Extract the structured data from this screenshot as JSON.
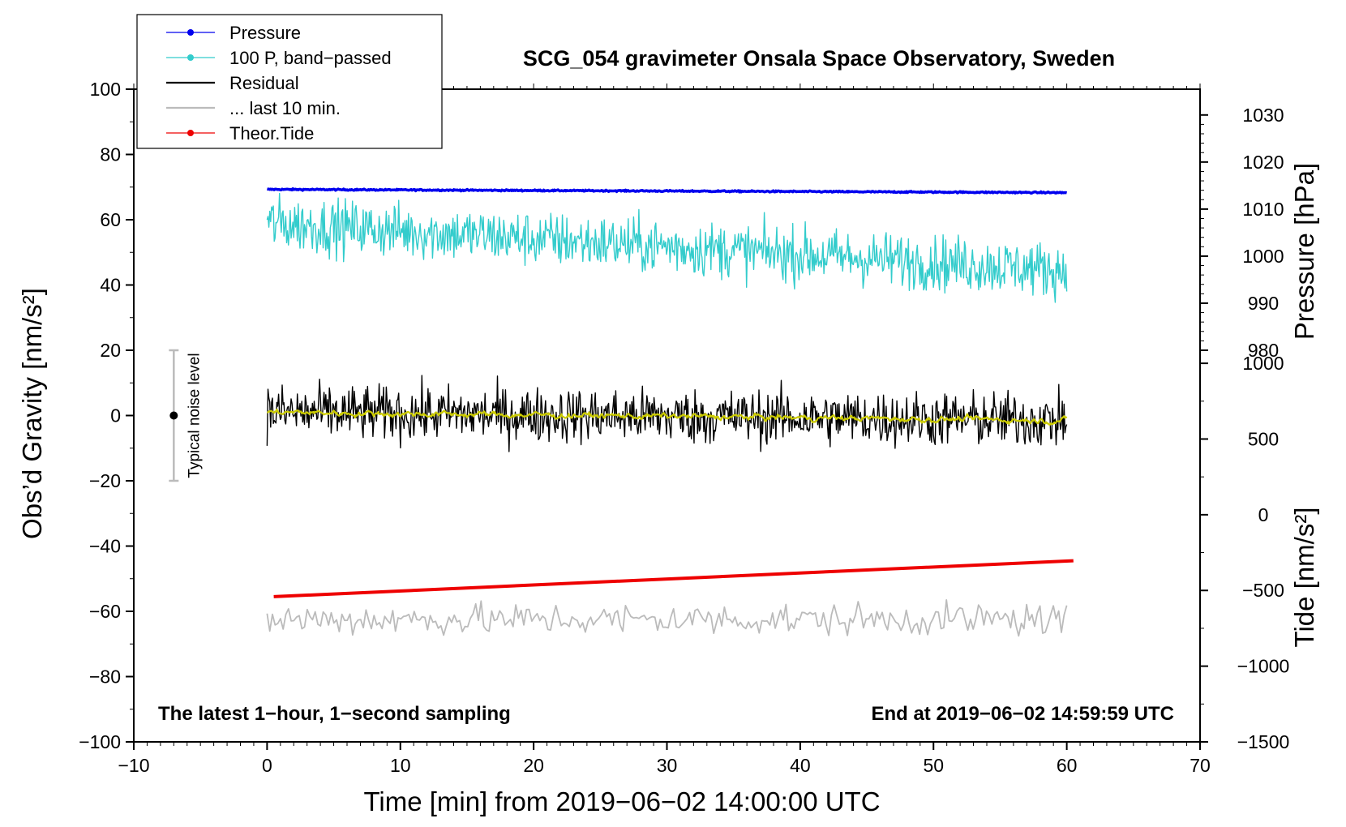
{
  "chart_data": {
    "type": "line",
    "title": "SCG_054 gravimeter Onsala Space Observatory, Sweden",
    "xlabel": "Time [min] from 2019−06−02 14:00:00 UTC",
    "ylabel_left": "Obs’d Gravity [nm/s²]",
    "ylabel_right_pressure": "Pressure [hPa]",
    "ylabel_right_tide": "Tide [nm/s²]",
    "xlim": [
      -10,
      70
    ],
    "ylim": [
      -100,
      100
    ],
    "x_ticks": [
      -10,
      0,
      10,
      20,
      30,
      40,
      50,
      60,
      70
    ],
    "x_tick_labels": [
      "−10",
      "0",
      "10",
      "20",
      "30",
      "40",
      "50",
      "60",
      "70"
    ],
    "y_ticks": [
      -100,
      -80,
      -60,
      -40,
      -20,
      0,
      20,
      40,
      60,
      80,
      100
    ],
    "y_tick_labels": [
      "−100",
      "−80",
      "−60",
      "−40",
      "−20",
      "0",
      "20",
      "40",
      "60",
      "80",
      "100"
    ],
    "pressure_axis": {
      "ticks": [
        980,
        990,
        1000,
        1010,
        1020,
        1030
      ],
      "tick_labels": [
        "980",
        "990",
        "1000",
        "1010",
        "1020",
        "1030"
      ],
      "map": [
        [
          980,
          20
        ],
        [
          1030,
          92.1
        ]
      ]
    },
    "tide_axis": {
      "ticks": [
        -1500,
        -1000,
        -500,
        0,
        500,
        1000
      ],
      "tick_labels": [
        "−1500",
        "−1000",
        "−500",
        "0",
        "500",
        "1000"
      ],
      "map": [
        [
          -1500,
          -100
        ],
        [
          1000,
          16
        ]
      ]
    },
    "annotation_left": "The latest 1−hour, 1−second sampling",
    "annotation_right": "End at 2019−06−02 14:59:59 UTC",
    "noise_bar": {
      "label": "Typical noise level",
      "x": -7,
      "center": 0,
      "low": -20,
      "high": 20
    },
    "legend": [
      {
        "label": "Pressure",
        "color": "#0000ee",
        "marker": true
      },
      {
        "label": "100 P, band−passed",
        "color": "#33cccc",
        "marker": true
      },
      {
        "label": "Residual",
        "color": "#000000",
        "marker": false
      },
      {
        "label": "... last 10 min.",
        "color": "#bbbbbb",
        "marker": false
      },
      {
        "label": "Theor.Tide",
        "color": "#ee0000",
        "marker": true
      }
    ],
    "series": [
      {
        "name": "Pressure",
        "color": "#0000ee",
        "x_range": [
          0,
          60
        ],
        "start": 69.3,
        "end": 68.3,
        "noise": 0.15,
        "width": 3.5
      },
      {
        "name": "100 P, band−passed",
        "color": "#33cccc",
        "x_range": [
          0,
          60
        ],
        "start": 59,
        "end": 44.5,
        "noise": 6,
        "width": 1.4
      },
      {
        "name": "Residual",
        "color": "#000000",
        "x_range": [
          0,
          60
        ],
        "start": 1,
        "end": -1.5,
        "noise": 6,
        "width": 1.4
      },
      {
        "name": "Residual (smoothed)",
        "color": "#cccc00",
        "x_range": [
          0,
          60
        ],
        "start": 1,
        "end": -1.5,
        "noise": 1,
        "width": 2.2
      },
      {
        "name": "... last 10 min.",
        "color": "#bbbbbb",
        "x_range": [
          0,
          60
        ],
        "start": -62.5,
        "end": -62.5,
        "noise": 3.5,
        "width": 1.8
      },
      {
        "name": "Theor.Tide",
        "color": "#ee0000",
        "x_range": [
          0.5,
          60.5
        ],
        "start": -55.5,
        "end": -44.5,
        "noise": 0,
        "width": 4
      }
    ]
  }
}
